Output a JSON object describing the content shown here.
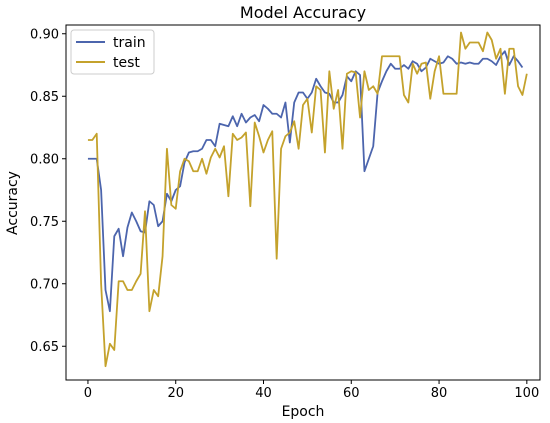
{
  "chart_data": {
    "type": "line",
    "title": "Model Accuracy",
    "xlabel": "Epoch",
    "ylabel": "Accuracy",
    "xlim": [
      -5,
      103
    ],
    "ylim": [
      0.623,
      0.907
    ],
    "xticks": [
      0,
      20,
      40,
      60,
      80,
      100
    ],
    "yticks": [
      0.65,
      0.7,
      0.75,
      0.8,
      0.85,
      0.9
    ],
    "xtick_labels": [
      "0",
      "20",
      "40",
      "60",
      "80",
      "100"
    ],
    "ytick_labels": [
      "0.65",
      "0.70",
      "0.75",
      "0.80",
      "0.85",
      "0.90"
    ],
    "grid": false,
    "legend": "upper-left",
    "series": [
      {
        "name": "train",
        "color": "#4c65ad",
        "values": [
          0.8,
          0.8,
          0.8,
          0.775,
          0.695,
          0.678,
          0.738,
          0.744,
          0.722,
          0.745,
          0.757,
          0.75,
          0.742,
          0.741,
          0.766,
          0.763,
          0.746,
          0.75,
          0.772,
          0.766,
          0.775,
          0.778,
          0.797,
          0.805,
          0.806,
          0.806,
          0.808,
          0.815,
          0.815,
          0.81,
          0.828,
          0.827,
          0.826,
          0.834,
          0.826,
          0.836,
          0.829,
          0.833,
          0.835,
          0.83,
          0.843,
          0.84,
          0.836,
          0.836,
          0.833,
          0.845,
          0.813,
          0.845,
          0.853,
          0.853,
          0.848,
          0.853,
          0.864,
          0.858,
          0.853,
          0.852,
          0.845,
          0.845,
          0.851,
          0.866,
          0.862,
          0.87,
          0.867,
          0.79,
          0.8,
          0.81,
          0.853,
          0.862,
          0.87,
          0.876,
          0.872,
          0.872,
          0.875,
          0.872,
          0.878,
          0.876,
          0.87,
          0.873,
          0.88,
          0.878,
          0.876,
          0.877,
          0.882,
          0.88,
          0.876,
          0.877,
          0.876,
          0.877,
          0.876,
          0.876,
          0.88,
          0.88,
          0.878,
          0.875,
          0.882,
          0.886,
          0.875,
          0.882,
          0.878,
          0.873
        ]
      },
      {
        "name": "test",
        "color": "#c4a22c",
        "values": [
          0.815,
          0.815,
          0.82,
          0.7,
          0.634,
          0.652,
          0.647,
          0.702,
          0.702,
          0.695,
          0.695,
          0.702,
          0.708,
          0.758,
          0.678,
          0.695,
          0.69,
          0.722,
          0.808,
          0.763,
          0.76,
          0.79,
          0.8,
          0.798,
          0.79,
          0.79,
          0.8,
          0.788,
          0.801,
          0.808,
          0.801,
          0.81,
          0.77,
          0.82,
          0.815,
          0.817,
          0.821,
          0.762,
          0.829,
          0.818,
          0.805,
          0.815,
          0.822,
          0.72,
          0.808,
          0.818,
          0.821,
          0.83,
          0.808,
          0.843,
          0.848,
          0.821,
          0.858,
          0.855,
          0.805,
          0.87,
          0.84,
          0.855,
          0.808,
          0.868,
          0.87,
          0.869,
          0.833,
          0.87,
          0.855,
          0.858,
          0.852,
          0.882,
          0.882,
          0.882,
          0.882,
          0.882,
          0.851,
          0.845,
          0.876,
          0.868,
          0.876,
          0.877,
          0.848,
          0.87,
          0.882,
          0.852,
          0.852,
          0.852,
          0.852,
          0.901,
          0.888,
          0.893,
          0.893,
          0.893,
          0.886,
          0.901,
          0.895,
          0.88,
          0.888,
          0.852,
          0.888,
          0.888,
          0.858,
          0.851,
          0.868
        ]
      }
    ]
  }
}
